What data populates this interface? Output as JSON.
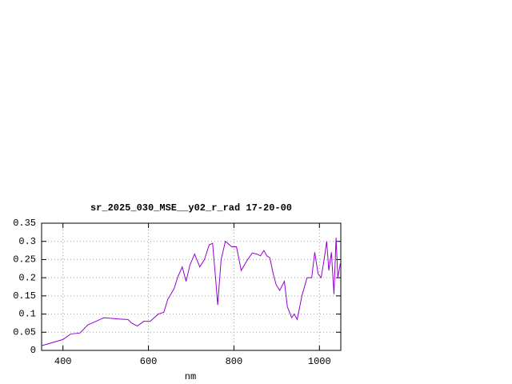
{
  "chart_data": {
    "type": "line",
    "title": "sr_2025_030_MSE__y02_r_rad 17-20-00",
    "x_label": "nm",
    "xlim": [
      350,
      1050
    ],
    "ylim": [
      0,
      0.35
    ],
    "xticks": [
      400,
      600,
      800,
      1000
    ],
    "yticks": [
      0,
      0.05,
      0.1,
      0.15,
      0.2,
      0.25,
      0.3,
      0.35
    ],
    "grid": true,
    "x": [
      350,
      400,
      418,
      440,
      458,
      477,
      496,
      514,
      533,
      552,
      561,
      574,
      589,
      604,
      623,
      636,
      645,
      660,
      668,
      679,
      688,
      697,
      708,
      720,
      731,
      742,
      750,
      757,
      762,
      770,
      780,
      795,
      806,
      817,
      832,
      843,
      854,
      862,
      870,
      877,
      884,
      892,
      899,
      907,
      918,
      925,
      935,
      941,
      948,
      959,
      971,
      982,
      989,
      997,
      1004,
      1011,
      1017,
      1022,
      1028,
      1034,
      1039,
      1043,
      1049
    ],
    "series": [
      {
        "name": "sr_2025_030_MSE__y02_r_rad",
        "color": "#9400d3",
        "values": [
          0.013,
          0.03,
          0.045,
          0.048,
          0.07,
          0.08,
          0.09,
          0.088,
          0.086,
          0.085,
          0.075,
          0.067,
          0.08,
          0.08,
          0.1,
          0.105,
          0.14,
          0.17,
          0.2,
          0.23,
          0.19,
          0.235,
          0.265,
          0.23,
          0.25,
          0.29,
          0.295,
          0.2,
          0.125,
          0.25,
          0.3,
          0.285,
          0.285,
          0.22,
          0.25,
          0.268,
          0.265,
          0.26,
          0.275,
          0.26,
          0.255,
          0.21,
          0.18,
          0.165,
          0.19,
          0.12,
          0.09,
          0.1,
          0.085,
          0.15,
          0.2,
          0.2,
          0.27,
          0.21,
          0.2,
          0.25,
          0.3,
          0.22,
          0.27,
          0.155,
          0.31,
          0.2,
          0.24
        ]
      }
    ]
  }
}
